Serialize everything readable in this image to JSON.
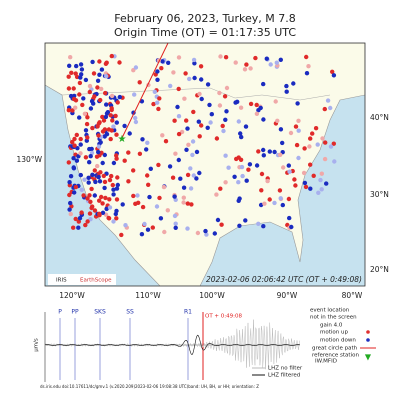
{
  "header": {
    "title": "February 06, 2023, Turkey, M 7.8",
    "subtitle": "Origin Time (OT) = 01:17:35 UTC"
  },
  "map": {
    "lat_labels": [
      "40°N",
      "30°N",
      "20°N"
    ],
    "left_label": "130°W",
    "lon_labels": [
      "120°W",
      "110°W",
      "100°W",
      "90°W",
      "80°W"
    ],
    "timestamp": "2023-02-06 02:06:42 UTC (OT + 0:49:08)",
    "logos": [
      "IRIS",
      "EarthScope"
    ]
  },
  "seismogram": {
    "unit": "μm/s",
    "phases": [
      "P",
      "PP",
      "SKS",
      "SS",
      "R1"
    ],
    "ot_label": "OT + 0:49:08"
  },
  "legend": {
    "event": "event location",
    "event2": "not in the screen",
    "gain": "gain  4.0",
    "up": "motion up",
    "down": "motion down",
    "path": "great circle path",
    "station": "reference station",
    "station_code": "IW.MFID",
    "raw": "LHZ no filter",
    "filtered": "LHZ filtered"
  },
  "footer": "ds.iris.edu doi:10.17611/dc/gmv.1 (v.2020.209)2023-02-06 19:08:38 UTC(band: UH, BH, or HH; orientation: Z"
}
